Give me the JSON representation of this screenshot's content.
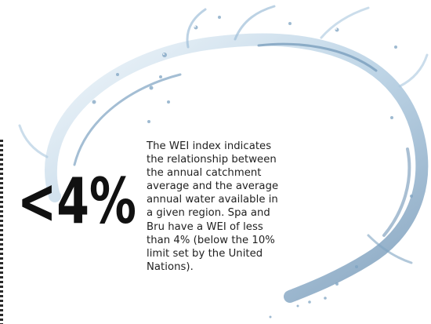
{
  "headline_figure": "<4%",
  "description": "The WEI index indicates the relationship between the annual catchment average and the average annual water available in a given region. Spa and Bru have a WEI of less than 4% (below the 10% limit set by the United Nations).",
  "colors": {
    "text": "#1f1f1f",
    "figure": "#111111",
    "water_light": "#d6e6f2",
    "water_mid": "#9fbfd8",
    "water_dark": "#5f87ab",
    "border_dots": "#2a2a2a"
  },
  "icons": [
    "water-splash-icon"
  ]
}
